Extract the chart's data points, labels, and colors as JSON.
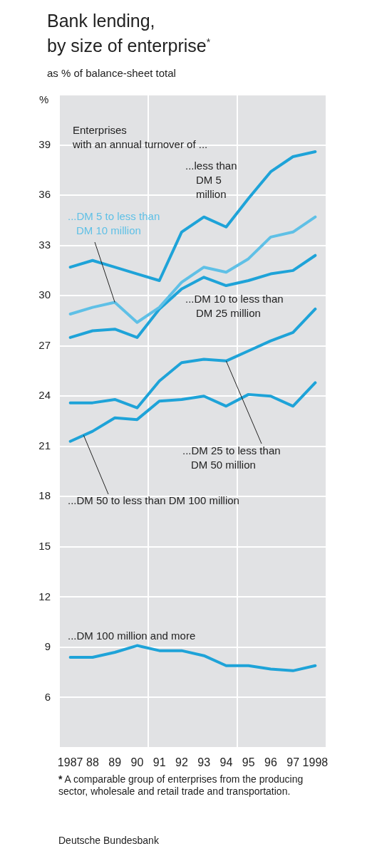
{
  "chart_data": {
    "type": "line",
    "title": "Bank lending,\nby size of enterprise$^{*}$",
    "subtitle": "as % of balance-sheet total",
    "ylabel": "%",
    "x": [
      1987,
      1988,
      1989,
      1990,
      1991,
      1992,
      1993,
      1994,
      1995,
      1996,
      1997,
      1998
    ],
    "xlim": [
      1986.5,
      1998.5
    ],
    "xticks": [
      1987,
      {
        "value": 1988,
        "label": "88"
      },
      {
        "value": 1989,
        "label": "89"
      },
      {
        "value": 1990,
        "label": "90"
      },
      {
        "value": 1990.5,
        "label": null
      },
      {
        "value": 1991,
        "label": "91"
      },
      {
        "value": 1992,
        "label": "92"
      },
      {
        "value": 1993,
        "label": "93"
      },
      {
        "value": 1994,
        "label": "94"
      },
      {
        "value": 1994.5,
        "label": null
      },
      {
        "value": 1995,
        "label": "95"
      },
      {
        "value": 1996,
        "label": "96"
      },
      {
        "value": 1997,
        "label": "97"
      },
      1998
    ],
    "ylim": [
      3,
      42
    ],
    "yticks": [
      6,
      9,
      12,
      15,
      18,
      21,
      24,
      27,
      30,
      33,
      36,
      39
    ],
    "grid": true,
    "legend": false,
    "marker": "none",
    "line_style": "solid",
    "series": [
      {
        "name": "...less than DM 5 million",
        "color": "#1ea3d8",
        "values": [
          31.7,
          32.1,
          31.7,
          31.3,
          30.9,
          33.8,
          34.7,
          34.1,
          35.8,
          37.4,
          38.3,
          38.6
        ]
      },
      {
        "name": "...DM 5 to less than DM 10 million",
        "color": "#5fc0e6",
        "values": [
          28.9,
          29.3,
          29.6,
          28.4,
          29.3,
          30.8,
          31.7,
          31.4,
          32.2,
          33.5,
          33.8,
          34.7
        ]
      },
      {
        "name": "...DM 10 to less than DM 25 million",
        "color": "#1ea3d8",
        "values": [
          27.5,
          27.9,
          28.0,
          27.5,
          29.2,
          30.4,
          31.1,
          30.6,
          30.9,
          31.3,
          31.5,
          32.4
        ]
      },
      {
        "name": "...DM 25 to less than DM 50 million",
        "color": "#1ea3d8",
        "values": [
          23.6,
          23.6,
          23.8,
          23.3,
          24.9,
          26.0,
          26.2,
          26.1,
          26.7,
          27.3,
          27.8,
          29.2
        ]
      },
      {
        "name": "...DM 50 to less than DM 100 million",
        "color": "#1ea3d8",
        "values": [
          21.3,
          21.9,
          22.7,
          22.6,
          23.7,
          23.8,
          24.0,
          23.4,
          24.1,
          24.0,
          23.4,
          24.8
        ]
      },
      {
        "name": "...DM 100 million and more",
        "color": "#1ea3d8",
        "values": [
          8.4,
          8.4,
          8.7,
          9.1,
          8.8,
          8.8,
          8.5,
          7.9,
          7.9,
          7.7,
          7.6,
          7.9
        ]
      }
    ],
    "annotations": [
      "Enterprises\nwith an annual turnover of ...",
      "* A comparable group of enterprises from the producing sector, wholesale and retail trade and transportation.",
      "Deutsche Bundesbank"
    ]
  }
}
